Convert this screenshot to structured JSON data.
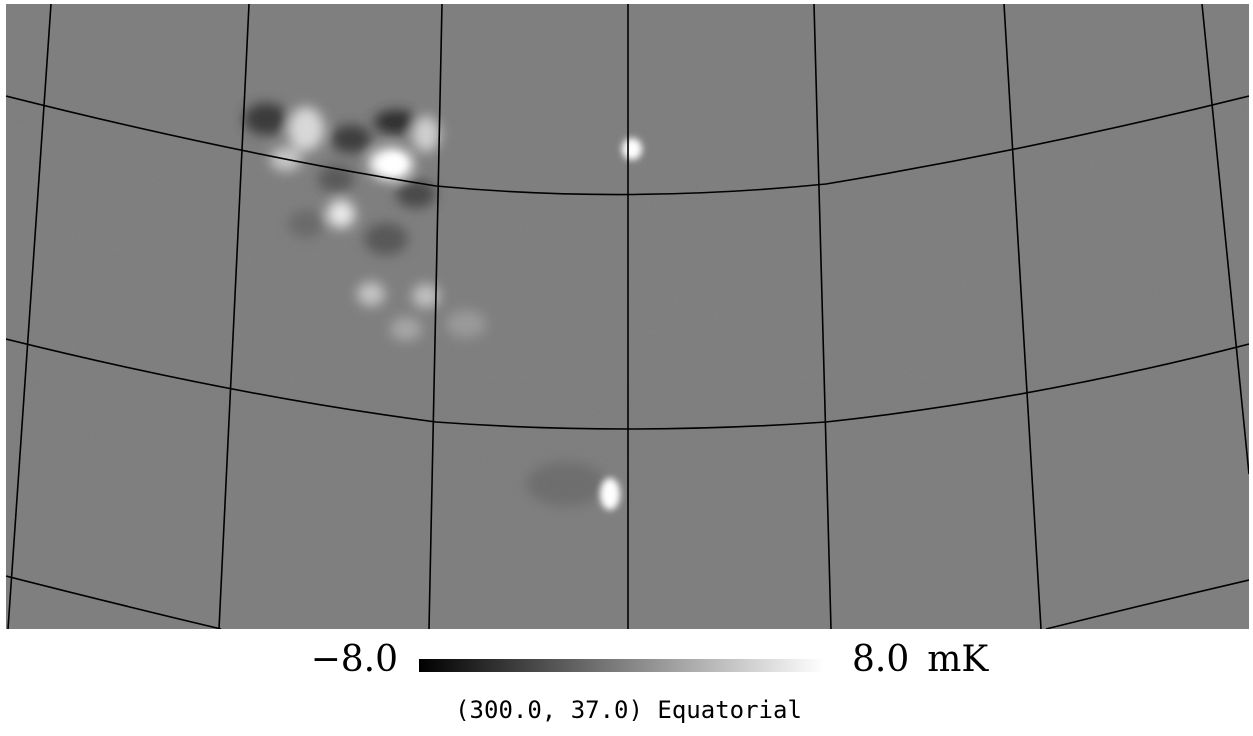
{
  "map": {
    "background_color": "#7f7f7f",
    "grid_color": "#000000",
    "colormap": "grayscale"
  },
  "colorbar": {
    "min_label": "−8.0",
    "max_label": "8.0",
    "unit": "mK",
    "low_color": "#000000",
    "high_color": "#ffffff"
  },
  "caption": {
    "text": "(300.0, 37.0) Equatorial"
  }
}
